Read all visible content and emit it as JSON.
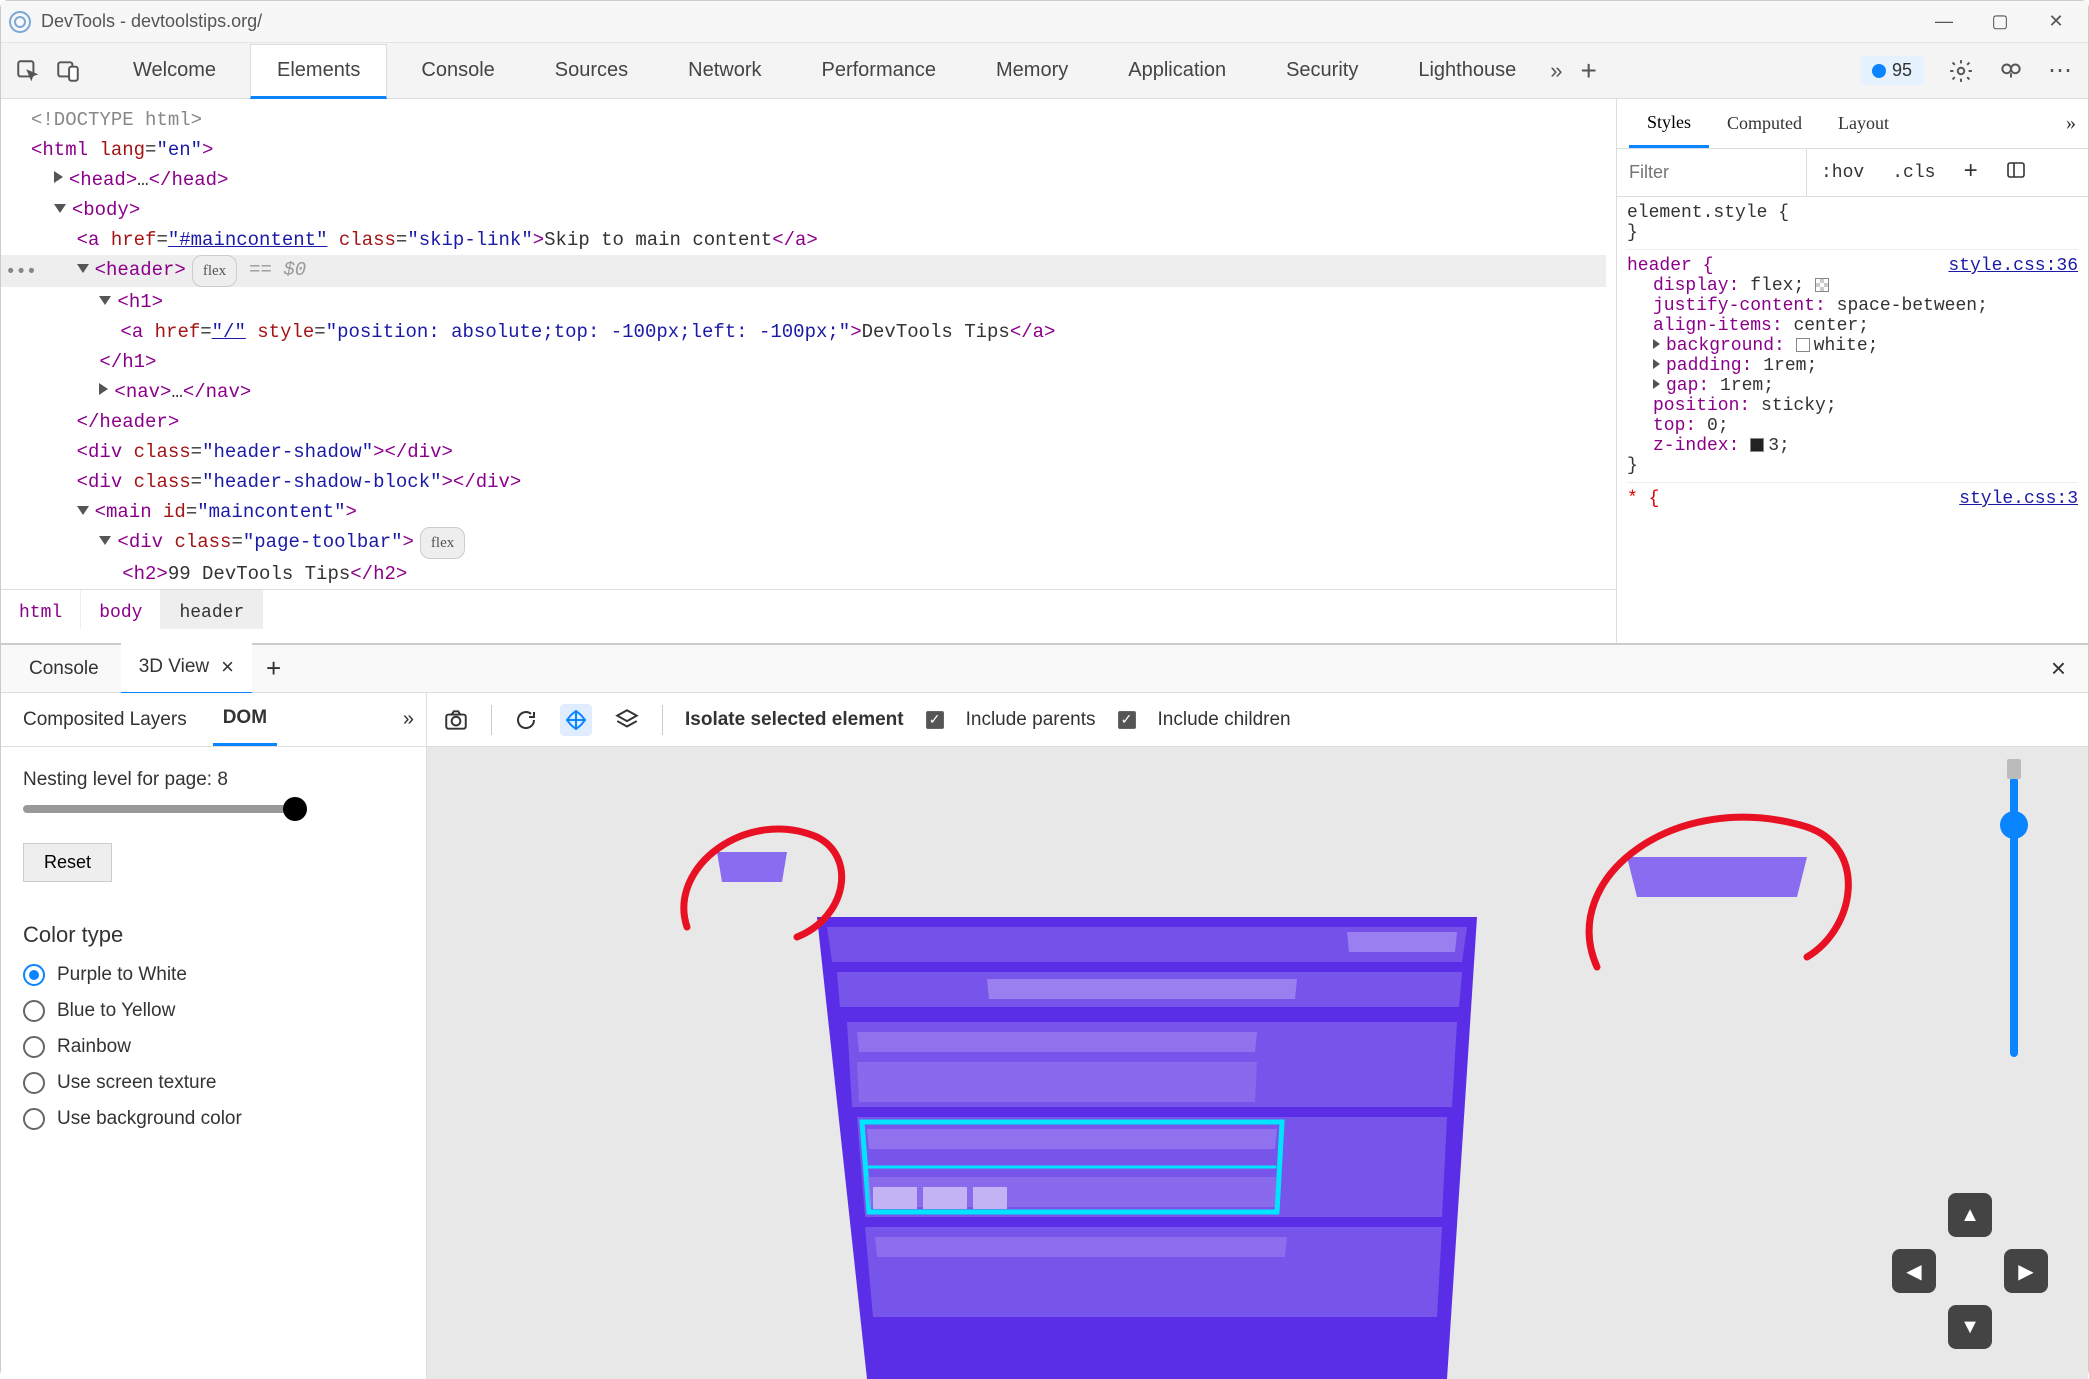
{
  "window": {
    "title": "DevTools - devtoolstips.org/"
  },
  "tabbar": {
    "tabs": [
      "Welcome",
      "Elements",
      "Console",
      "Sources",
      "Network",
      "Performance",
      "Memory",
      "Application",
      "Security",
      "Lighthouse"
    ],
    "active_index": 1,
    "issues_count": "95"
  },
  "dom_tree": {
    "doctype": "<!DOCTYPE html>",
    "html_open": {
      "tag": "html",
      "attr": "lang",
      "val": "\"en\""
    },
    "head": {
      "open": "<head>",
      "ell": "…",
      "close": "</head>"
    },
    "body_open": "<body>",
    "skip_link": {
      "tag": "a",
      "href_attr": "href",
      "href_val": "\"#maincontent\"",
      "class_attr": "class",
      "class_val": "\"skip-link\"",
      "text": "Skip to main content",
      "close": "</a>"
    },
    "header": {
      "open": "<header>",
      "pill": "flex",
      "eq": "== $0"
    },
    "h1_open": "<h1>",
    "h1_a": {
      "tag": "a",
      "href_attr": "href",
      "href_val": "\"/\"",
      "style_attr": "style",
      "style_val": "\"position: absolute;top: -100px;left: -100px;\"",
      "text": "DevTools Tips",
      "close": "</a>"
    },
    "h1_close": "</h1>",
    "nav": {
      "open": "<nav>",
      "ell": "…",
      "close": "</nav>"
    },
    "header_close": "</header>",
    "div1": {
      "tag": "div",
      "class_attr": "class",
      "class_val": "\"header-shadow\"",
      "close": "</div>"
    },
    "div2": {
      "tag": "div",
      "class_attr": "class",
      "class_val": "\"header-shadow-block\"",
      "close": "</div>"
    },
    "main": {
      "tag": "main",
      "id_attr": "id",
      "id_val": "\"maincontent\""
    },
    "toolbar": {
      "tag": "div",
      "class_attr": "class",
      "class_val": "\"page-toolbar\"",
      "pill": "flex"
    },
    "h2": {
      "open": "<h2>",
      "text": "99 DevTools Tips",
      "close": "</h2>"
    }
  },
  "breadcrumbs": [
    "html",
    "body",
    "header"
  ],
  "styles_panel": {
    "tabs": [
      "Styles",
      "Computed",
      "Layout"
    ],
    "filter_placeholder": "Filter",
    "hov": ":hov",
    "cls": ".cls",
    "element_style": "element.style {",
    "element_style_close": "}",
    "header_sel": "header {",
    "src_link": "style.css:36",
    "props": [
      {
        "name": "display",
        "val": "flex;"
      },
      {
        "name": "justify-content",
        "val": "space-between;"
      },
      {
        "name": "align-items",
        "val": "center;"
      },
      {
        "name": "background",
        "val": "white;",
        "swatch": true,
        "expand": true
      },
      {
        "name": "padding",
        "val": "1rem;",
        "expand": true
      },
      {
        "name": "gap",
        "val": "1rem;",
        "expand": true
      },
      {
        "name": "position",
        "val": "sticky;"
      },
      {
        "name": "top",
        "val": "0;"
      },
      {
        "name": "z-index",
        "val": "3;",
        "darkswatch": true
      }
    ],
    "close": "}",
    "star_sel": "* {",
    "src_link2": "style.css:3"
  },
  "drawer": {
    "tabs": [
      "Console",
      "3D View"
    ],
    "active_index": 1
  },
  "view3d": {
    "subtabs": [
      "Composited Layers",
      "DOM"
    ],
    "active_index": 1,
    "nesting_label": "Nesting level for page: 8",
    "reset": "Reset",
    "color_type_heading": "Color type",
    "radios": [
      "Purple to White",
      "Blue to Yellow",
      "Rainbow",
      "Use screen texture",
      "Use background color"
    ],
    "radio_checked": 0,
    "toolbar": {
      "isolate": "Isolate selected element",
      "include_parents": "Include parents",
      "include_children": "Include children"
    }
  },
  "viz": {
    "bg": "#e8e8e8",
    "main_fill": "#5a2ee6",
    "panel_fill": "#7855ea",
    "light_fill": "#9a7ff0",
    "pale_fill": "#c3b2f4",
    "highlight_stroke": "#00e5ff",
    "annotation_stroke": "#e81123",
    "floater_fill": "#8a6cf0"
  }
}
